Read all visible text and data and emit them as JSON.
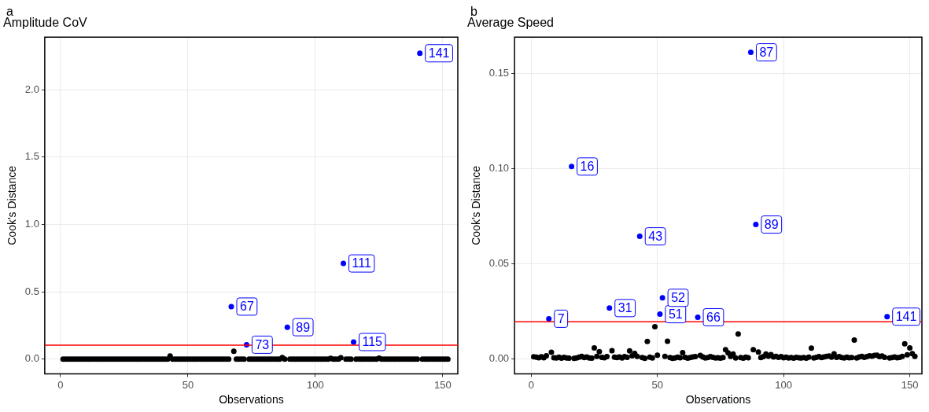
{
  "chart_data": [
    {
      "type": "scatter",
      "title": "Amplitude CoV",
      "xlabel": "Observations",
      "ylabel": "Cook's Distance",
      "annotations": [
        "a",
        {
          "text": "67",
          "x": 67,
          "y": 0.39
        },
        {
          "text": "73",
          "x": 73,
          "y": 0.107
        },
        {
          "text": "89",
          "x": 89,
          "y": 0.237
        },
        {
          "text": "111",
          "x": 111,
          "y": 0.71
        },
        {
          "text": "115",
          "x": 115,
          "y": 0.127
        },
        {
          "text": "141",
          "x": 141,
          "y": 2.27
        }
      ],
      "xlim": [
        -6.2,
        155.9
      ],
      "xticks": [
        0,
        50,
        100,
        150
      ],
      "ylim": [
        -0.11,
        2.39
      ],
      "yticks": [
        {
          "value": 0,
          "label": "0.0"
        },
        {
          "value": 0.5,
          "label": "0.5"
        },
        {
          "value": 1,
          "label": "1.0"
        },
        {
          "value": 1.5,
          "label": "1.5"
        },
        {
          "value": 2,
          "label": "2.0"
        }
      ],
      "grid": true,
      "marker": "circle",
      "x": [
        1,
        2,
        3,
        4,
        5,
        6,
        7,
        8,
        9,
        10,
        11,
        12,
        13,
        14,
        15,
        16,
        17,
        18,
        19,
        20,
        21,
        22,
        23,
        24,
        25,
        26,
        27,
        28,
        29,
        30,
        31,
        32,
        33,
        34,
        35,
        36,
        37,
        38,
        39,
        40,
        41,
        42,
        43,
        44,
        45,
        46,
        47,
        48,
        49,
        50,
        51,
        52,
        53,
        54,
        55,
        56,
        57,
        58,
        59,
        60,
        61,
        62,
        63,
        64,
        65,
        66,
        67,
        68,
        69,
        70,
        71,
        72,
        73,
        74,
        75,
        76,
        77,
        78,
        79,
        80,
        81,
        82,
        83,
        84,
        85,
        86,
        87,
        88,
        89,
        90,
        91,
        92,
        93,
        94,
        95,
        96,
        97,
        98,
        99,
        100,
        101,
        102,
        103,
        104,
        105,
        106,
        107,
        108,
        109,
        110,
        111,
        112,
        113,
        114,
        115,
        116,
        117,
        118,
        119,
        120,
        121,
        122,
        123,
        124,
        125,
        126,
        127,
        128,
        129,
        130,
        131,
        132,
        133,
        134,
        135,
        136,
        137,
        138,
        139,
        140,
        141,
        142,
        143,
        144,
        145,
        146,
        147,
        148,
        149,
        150,
        151,
        152
      ],
      "ref_lines": [
        {
          "axis": "y",
          "value": 0.104,
          "color": "#ff0000"
        }
      ],
      "series": [
        {
          "color": "#000000",
          "values": [
            0,
            0,
            0,
            0,
            0,
            0,
            0,
            0,
            0,
            0,
            0,
            0,
            0,
            0,
            0,
            0,
            0,
            0,
            0,
            0,
            0,
            0,
            0,
            0,
            0,
            0,
            0,
            0,
            0,
            0,
            0,
            0,
            0,
            0,
            0,
            0,
            0,
            0,
            0,
            0,
            0,
            0,
            0.023,
            0,
            0,
            0,
            0,
            0,
            0,
            0,
            0,
            0,
            0,
            0,
            0,
            0,
            0,
            0,
            0,
            0,
            0,
            0,
            0,
            0,
            0,
            0,
            null,
            0.058,
            0,
            0,
            0,
            0,
            null,
            0,
            0,
            0,
            0,
            0,
            0,
            0,
            0,
            0,
            0,
            0,
            0,
            0,
            0.012,
            0,
            null,
            0,
            0,
            0,
            0,
            0,
            0,
            0,
            0,
            0,
            0,
            0,
            0,
            0,
            0,
            0,
            0,
            0.006,
            0,
            0,
            0,
            0.01,
            null,
            0,
            0,
            0,
            null,
            0,
            0,
            0,
            0,
            0,
            0,
            0,
            0,
            0,
            0.008,
            0,
            0,
            0,
            0,
            0,
            0,
            0,
            0,
            0,
            0,
            0,
            0,
            0,
            0,
            0,
            null,
            0,
            0,
            0,
            0,
            0,
            0,
            0,
            0,
            0,
            0,
            0
          ]
        },
        {
          "color": "#0000ff",
          "x": [
            67,
            73,
            89,
            111,
            115,
            141
          ],
          "values": [
            0.39,
            0.107,
            0.237,
            0.71,
            0.127,
            2.27
          ]
        }
      ]
    },
    {
      "type": "scatter",
      "title": "Average Speed",
      "xlabel": "Observations",
      "ylabel": "Cook's Distance",
      "annotations": [
        "b",
        {
          "text": "7",
          "x": 7,
          "y": 0.021
        },
        {
          "text": "16",
          "x": 16,
          "y": 0.101
        },
        {
          "text": "31",
          "x": 31,
          "y": 0.0266
        },
        {
          "text": "43",
          "x": 43,
          "y": 0.0643
        },
        {
          "text": "51",
          "x": 51,
          "y": 0.0234
        },
        {
          "text": "52",
          "x": 52,
          "y": 0.032
        },
        {
          "text": "66",
          "x": 66,
          "y": 0.0218
        },
        {
          "text": "87",
          "x": 87,
          "y": 0.161
        },
        {
          "text": "89",
          "x": 89,
          "y": 0.0705
        },
        {
          "text": "141",
          "x": 141,
          "y": 0.0221
        }
      ],
      "xlim": [
        -6.6,
        154.8
      ],
      "xticks": [
        0,
        50,
        100,
        150
      ],
      "ylim": [
        -0.008,
        0.169
      ],
      "yticks": [
        {
          "value": 0,
          "label": "0.00"
        },
        {
          "value": 0.05,
          "label": "0.05"
        },
        {
          "value": 0.1,
          "label": "0.10"
        },
        {
          "value": 0.15,
          "label": "0.15"
        }
      ],
      "grid": true,
      "marker": "circle",
      "x": [
        1,
        2,
        3,
        4,
        5,
        6,
        7,
        8,
        9,
        10,
        11,
        12,
        13,
        14,
        15,
        16,
        17,
        18,
        19,
        20,
        21,
        22,
        23,
        24,
        25,
        26,
        27,
        28,
        29,
        30,
        31,
        32,
        33,
        34,
        35,
        36,
        37,
        38,
        39,
        40,
        41,
        42,
        43,
        44,
        45,
        46,
        47,
        48,
        49,
        50,
        51,
        52,
        53,
        54,
        55,
        56,
        57,
        58,
        59,
        60,
        61,
        62,
        63,
        64,
        65,
        66,
        67,
        68,
        69,
        70,
        71,
        72,
        73,
        74,
        75,
        76,
        77,
        78,
        79,
        80,
        81,
        82,
        83,
        84,
        85,
        86,
        87,
        88,
        89,
        90,
        91,
        92,
        93,
        94,
        95,
        96,
        97,
        98,
        99,
        100,
        101,
        102,
        103,
        104,
        105,
        106,
        107,
        108,
        109,
        110,
        111,
        112,
        113,
        114,
        115,
        116,
        117,
        118,
        119,
        120,
        121,
        122,
        123,
        124,
        125,
        126,
        127,
        128,
        129,
        130,
        131,
        132,
        133,
        134,
        135,
        136,
        137,
        138,
        139,
        140,
        141,
        142,
        143,
        144,
        145,
        146,
        147,
        148,
        149,
        150,
        151,
        152
      ],
      "ref_lines": [
        {
          "axis": "y",
          "value": 0.0194,
          "color": "#ff0000"
        }
      ],
      "series": [
        {
          "color": "#000000",
          "values": [
            0.001,
            0.0008,
            0.0005,
            0.001,
            0.0005,
            0.0015,
            null,
            0.0034,
            0.0005,
            0.0004,
            0.0008,
            0.0003,
            0.0007,
            0.0004,
            0.0003,
            null,
            0.0002,
            0.0004,
            0.0008,
            0.0012,
            0.0006,
            0.0009,
            0.0004,
            0.0003,
            0.0057,
            0.0012,
            0.0037,
            0.0007,
            0.0005,
            0.0011,
            null,
            0.0042,
            0.0008,
            0.0006,
            0.0009,
            0.0004,
            0.0011,
            0.0007,
            0.0041,
            0.0015,
            0.0028,
            0.0012,
            null,
            0.0006,
            0.0002,
            0.0091,
            0.0008,
            0.0004,
            0.0168,
            0.0019,
            null,
            null,
            0.0012,
            0.0092,
            0.0006,
            0.0002,
            0.0004,
            0.0008,
            0.0005,
            0.0032,
            0.0007,
            0.0003,
            0.0006,
            0.0009,
            0.0011,
            null,
            0.0018,
            0.0009,
            0.0004,
            0.0006,
            0.0011,
            0.0007,
            0.0004,
            0.0005,
            0.0003,
            0.0006,
            0.0047,
            0.0031,
            0.0012,
            0.0025,
            0.0004,
            0.013,
            0.0006,
            0.0003,
            0.0008,
            0.0005,
            null,
            0.0047,
            null,
            0.0035,
            0.0006,
            0.0011,
            0.0025,
            0.0013,
            0.0022,
            0.0009,
            0.0012,
            0.0007,
            0.0011,
            0.0005,
            0.0008,
            0.0004,
            0.0006,
            0.0003,
            0.0007,
            0.0005,
            0.0004,
            0.0006,
            0.0003,
            0.0008,
            0.0056,
            0.0004,
            0.0007,
            0.0011,
            0.0006,
            0.0009,
            0.0012,
            0.0014,
            0.0008,
            0.0026,
            0.0007,
            0.0011,
            0.0006,
            0.0004,
            0.0008,
            0.0005,
            0.0006,
            0.0098,
            0.0004,
            0.0009,
            0.0012,
            0.0007,
            0.0011,
            0.0015,
            0.0013,
            0.0018,
            0.0019,
            0.0011,
            0.0014,
            0.0007,
            null,
            0.0004,
            0.0006,
            0.0009,
            0.0005,
            0.0007,
            0.0012,
            0.0078,
            0.0021,
            0.0057,
            0.0027,
            0.0012
          ]
        },
        {
          "color": "#0000ff",
          "x": [
            7,
            16,
            31,
            43,
            51,
            52,
            66,
            87,
            89,
            141
          ],
          "values": [
            0.021,
            0.101,
            0.0266,
            0.0643,
            0.0234,
            0.032,
            0.0218,
            0.161,
            0.0705,
            0.0221
          ]
        }
      ]
    }
  ]
}
